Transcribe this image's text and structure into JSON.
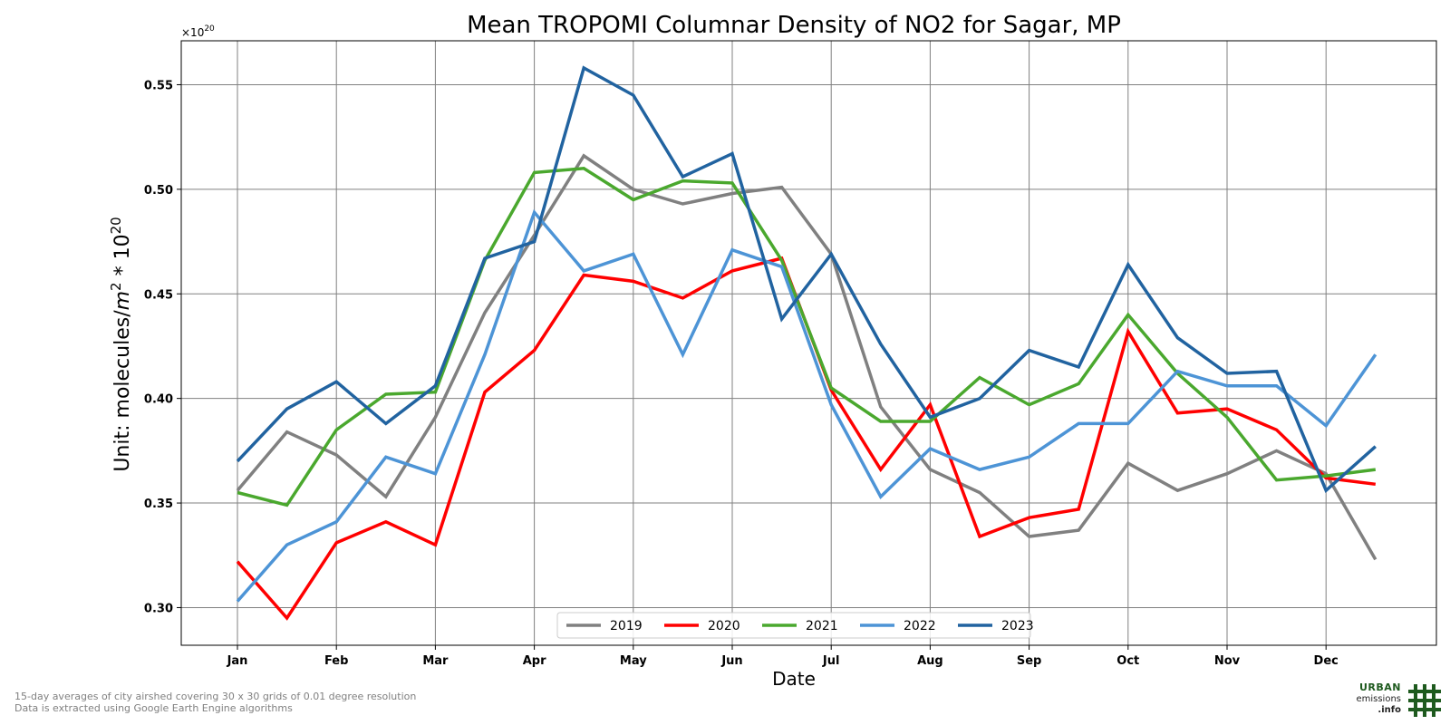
{
  "chart_data": {
    "type": "line",
    "title": "Mean TROPOMI Columnar Density of NO2 for Sagar, MP",
    "xlabel": "Date",
    "ylabel_prefix": "Unit: molecules/",
    "ylabel_m": "m",
    "ylabel_sup1": "2",
    "ylabel_mid": " * 10",
    "ylabel_sup2": "20",
    "offset_base": "×10",
    "offset_exp": "20",
    "months": [
      "Jan",
      "Feb",
      "Mar",
      "Apr",
      "May",
      "Jun",
      "Jul",
      "Aug",
      "Sep",
      "Oct",
      "Nov",
      "Dec"
    ],
    "x_points_per_month": 2,
    "yticks": [
      "0.30",
      "0.35",
      "0.40",
      "0.45",
      "0.50",
      "0.55"
    ],
    "ylim": [
      0.282,
      0.571
    ],
    "grid": true,
    "legend_position": "bottom-center",
    "series": [
      {
        "name": "2019",
        "color": "#808080",
        "values": [
          0.356,
          0.384,
          0.373,
          0.353,
          0.391,
          0.441,
          0.478,
          0.516,
          0.5,
          0.493,
          0.498,
          0.501,
          0.469,
          0.396,
          0.366,
          0.355,
          0.334,
          0.337,
          0.369,
          0.356,
          0.364,
          0.375,
          0.364,
          0.323
        ]
      },
      {
        "name": "2020",
        "color": "#ff0000",
        "values": [
          0.322,
          0.295,
          0.331,
          0.341,
          0.33,
          0.403,
          0.423,
          0.459,
          0.456,
          0.448,
          0.461,
          0.467,
          0.404,
          0.366,
          0.397,
          0.334,
          0.343,
          0.347,
          0.432,
          0.393,
          0.395,
          0.385,
          0.362,
          0.359
        ]
      },
      {
        "name": "2021",
        "color": "#4aa82e",
        "values": [
          0.355,
          0.349,
          0.385,
          0.402,
          0.403,
          0.466,
          0.508,
          0.51,
          0.495,
          0.504,
          0.503,
          0.466,
          0.405,
          0.389,
          0.389,
          0.41,
          0.397,
          0.407,
          0.44,
          0.412,
          0.391,
          0.361,
          0.363,
          0.366
        ]
      },
      {
        "name": "2022",
        "color": "#4d94d6",
        "values": [
          0.303,
          0.33,
          0.341,
          0.372,
          0.364,
          0.421,
          0.489,
          0.461,
          0.469,
          0.421,
          0.471,
          0.463,
          0.397,
          0.353,
          0.376,
          0.366,
          0.372,
          0.388,
          0.388,
          0.413,
          0.406,
          0.406,
          0.387,
          0.421
        ]
      },
      {
        "name": "2023",
        "color": "#2163a0",
        "values": [
          0.37,
          0.395,
          0.408,
          0.388,
          0.406,
          0.467,
          0.475,
          0.558,
          0.545,
          0.506,
          0.517,
          0.438,
          0.469,
          0.426,
          0.391,
          0.4,
          0.423,
          0.415,
          0.464,
          0.429,
          0.412,
          0.413,
          0.356,
          0.377
        ]
      }
    ]
  },
  "footer": {
    "line1": "15-day averages of city airshed covering 30 x 30 grids of 0.01 degree resolution",
    "line2": "Data is extracted using Google Earth Engine algorithms"
  },
  "logo": {
    "line1": "URBAN",
    "line2": "emissions",
    "line3": ".info",
    "color": "#1e5a1e"
  }
}
